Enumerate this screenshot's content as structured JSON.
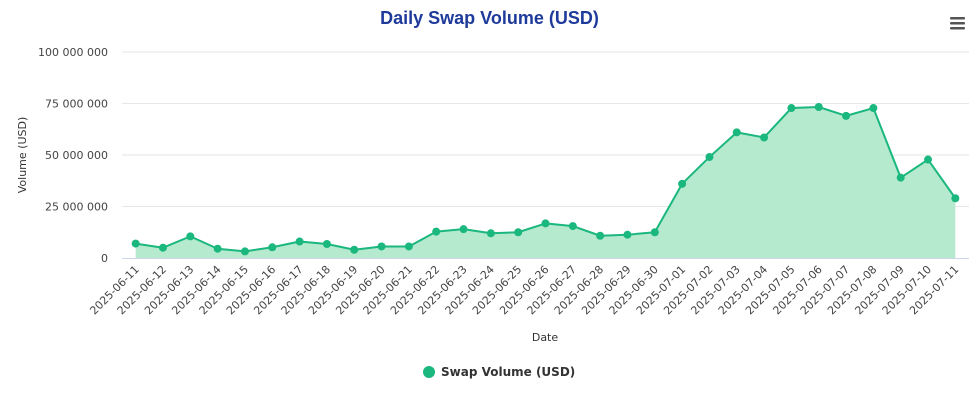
{
  "chart_data": {
    "type": "area",
    "title": "Daily Swap Volume (USD)",
    "xlabel": "Date",
    "ylabel": "Volume (USD)",
    "ylim": [
      0,
      100000000
    ],
    "yticks": [
      0,
      25000000,
      50000000,
      75000000,
      100000000
    ],
    "ytick_labels": [
      "0",
      "25 000 000",
      "50 000 000",
      "75 000 000",
      "100 000 000"
    ],
    "grid": true,
    "legend_position": "bottom-center",
    "categories": [
      "2025-06-11",
      "2025-06-12",
      "2025-06-13",
      "2025-06-14",
      "2025-06-15",
      "2025-06-16",
      "2025-06-17",
      "2025-06-18",
      "2025-06-19",
      "2025-06-20",
      "2025-06-21",
      "2025-06-22",
      "2025-06-23",
      "2025-06-24",
      "2025-06-25",
      "2025-06-26",
      "2025-06-27",
      "2025-06-28",
      "2025-06-29",
      "2025-06-30",
      "2025-07-01",
      "2025-07-02",
      "2025-07-03",
      "2025-07-04",
      "2025-07-05",
      "2025-07-06",
      "2025-07-07",
      "2025-07-08",
      "2025-07-09",
      "2025-07-10",
      "2025-07-11"
    ],
    "series": [
      {
        "name": "Swap Volume (USD)",
        "color": "#1ab77e",
        "fill_color": "#b6eacf",
        "values": [
          7000000,
          5000000,
          10500000,
          4500000,
          3200000,
          5200000,
          8000000,
          6800000,
          4000000,
          5600000,
          5600000,
          12800000,
          14000000,
          12000000,
          12500000,
          16800000,
          15500000,
          10800000,
          11300000,
          12500000,
          36000000,
          49000000,
          61000000,
          58500000,
          72800000,
          73300000,
          69000000,
          72800000,
          39000000,
          47800000,
          29000000
        ]
      }
    ]
  },
  "colors": {
    "title": "#1e3a9a",
    "text": "#444444",
    "axis_title": "#333333",
    "grid": "#e6e6e6",
    "axis_line": "#ccd6eb",
    "menu_icon": "#555555"
  },
  "menu": {
    "icon": "hamburger-menu-icon"
  }
}
